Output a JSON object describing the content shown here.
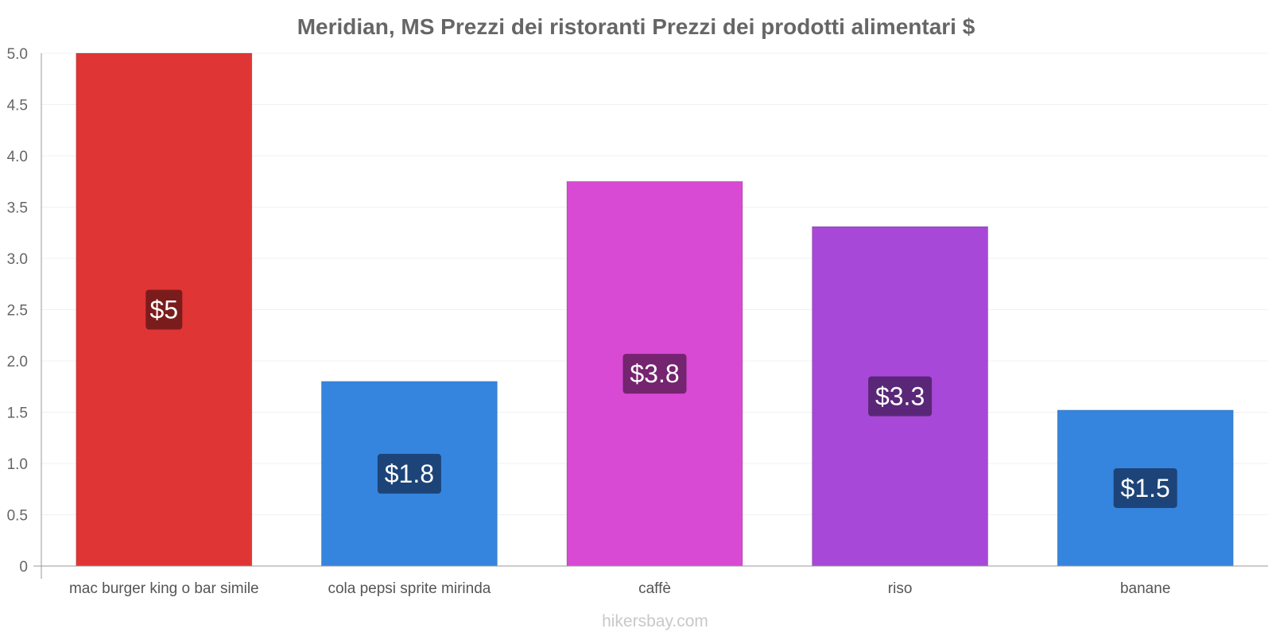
{
  "chart_data": {
    "type": "bar",
    "title": "Meridian, MS Prezzi dei ristoranti Prezzi dei prodotti alimentari $",
    "categories": [
      "mac burger king o bar simile",
      "cola pepsi sprite mirinda",
      "caffè",
      "riso",
      "banane"
    ],
    "values": [
      5,
      1.8,
      3.75,
      3.31,
      1.52
    ],
    "data_labels": [
      "$5",
      "$1.8",
      "$3.8",
      "$3.3",
      "$1.5"
    ],
    "bar_colors": [
      "#e03535",
      "#3585de",
      "#d84ad4",
      "#a848d8",
      "#3585de"
    ],
    "label_bg_colors": [
      "#7a1c1c",
      "#1d4478",
      "#75246f",
      "#5a2778",
      "#1d4478"
    ],
    "ylim": [
      0,
      5
    ],
    "yticks": [
      "0",
      "0.5",
      "1.0",
      "1.5",
      "2.0",
      "2.5",
      "3.0",
      "3.5",
      "4.0",
      "4.5",
      "5.0"
    ],
    "xlabel": "",
    "ylabel": "",
    "grid": true
  },
  "footer": "hikersbay.com"
}
